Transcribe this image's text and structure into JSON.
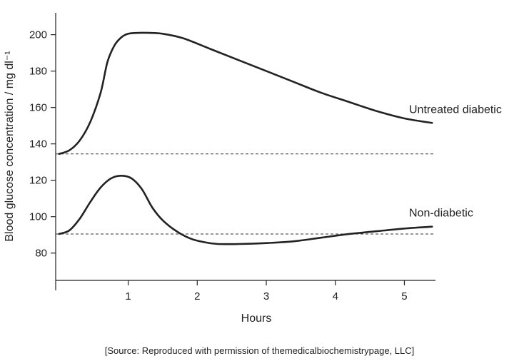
{
  "chart_data": {
    "type": "line",
    "xlabel": "Hours",
    "ylabel": "Blood glucose concentration / mg dl⁻¹",
    "xlim": [
      -0.05,
      5.45
    ],
    "ylim": [
      65,
      212
    ],
    "x_ticks": [
      1,
      2,
      3,
      4,
      5
    ],
    "y_ticks": [
      80,
      100,
      120,
      140,
      160,
      180,
      200
    ],
    "grid": false,
    "legend": "none",
    "series": [
      {
        "name": "Untreated diabetic",
        "color": "#222222",
        "x": [
          0,
          0.15,
          0.3,
          0.45,
          0.6,
          0.7,
          0.8,
          0.9,
          1.0,
          1.15,
          1.3,
          1.5,
          1.8,
          2.2,
          2.6,
          3.0,
          3.4,
          3.8,
          4.2,
          4.6,
          5.0,
          5.4
        ],
        "y": [
          134.5,
          136.5,
          142,
          152,
          168,
          185,
          194,
          198.5,
          200.5,
          201,
          201,
          200.5,
          198,
          192,
          186,
          180,
          174,
          168,
          163,
          158,
          154,
          151.5
        ]
      },
      {
        "name": "Non-diabetic",
        "color": "#222222",
        "x": [
          0,
          0.15,
          0.3,
          0.45,
          0.6,
          0.75,
          0.9,
          1.05,
          1.2,
          1.35,
          1.5,
          1.7,
          1.9,
          2.1,
          2.3,
          2.6,
          3.0,
          3.4,
          3.8,
          4.2,
          4.6,
          5.0,
          5.4
        ],
        "y": [
          90.5,
          92.5,
          99,
          108,
          116,
          121,
          122.5,
          121,
          115,
          105,
          98,
          92,
          88,
          86,
          85,
          85,
          85.5,
          86.5,
          88.5,
          90.5,
          92,
          93.5,
          94.5
        ]
      }
    ],
    "baselines": [
      {
        "y": 134.5,
        "style": "dashed"
      },
      {
        "y": 90.5,
        "style": "dashed"
      }
    ]
  },
  "source_note": "[Source: Reproduced with permission of themedicalbiochemistrypage, LLC]"
}
